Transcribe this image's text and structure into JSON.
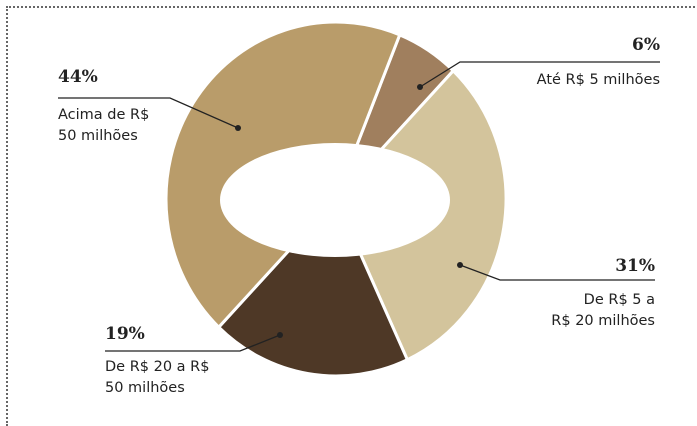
{
  "chart_data": {
    "type": "donut",
    "categories": [
      "Até R$ 5 milhões",
      "De R$ 5 a\nR$ 20 milhões",
      "De R$ 20 a R$\n50 milhões",
      "Acima de R$\n50 milhões"
    ],
    "values": [
      6,
      31,
      19,
      44
    ],
    "value_labels": [
      "6%",
      "31%",
      "19%",
      "44%"
    ],
    "colors": [
      "#a07f5e",
      "#d3c49c",
      "#4e3826",
      "#b99c6a"
    ]
  }
}
